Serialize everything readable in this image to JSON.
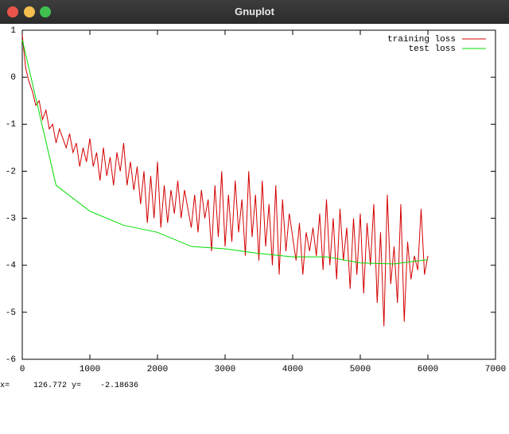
{
  "window": {
    "title": "Gnuplot"
  },
  "status": {
    "x_label": "x=",
    "x_value": "126.772",
    "y_label": "y=",
    "y_value": "-2.18636"
  },
  "chart_data": {
    "type": "line",
    "xlim": [
      0,
      7000
    ],
    "xticks": [
      0,
      1000,
      2000,
      3000,
      4000,
      5000,
      6000,
      7000
    ],
    "ylim": [
      -6,
      1
    ],
    "yticks": [
      1,
      0,
      -1,
      -2,
      -3,
      -4,
      -5,
      -6
    ],
    "legend": "upper right",
    "series": [
      {
        "name": "training loss",
        "color": "#d40000",
        "x": [
          0,
          50,
          100,
          150,
          200,
          250,
          300,
          350,
          400,
          450,
          500,
          550,
          600,
          650,
          700,
          750,
          800,
          850,
          900,
          950,
          1000,
          1050,
          1100,
          1150,
          1200,
          1250,
          1300,
          1350,
          1400,
          1450,
          1500,
          1550,
          1600,
          1650,
          1700,
          1750,
          1800,
          1850,
          1900,
          1950,
          2000,
          2050,
          2100,
          2150,
          2200,
          2250,
          2300,
          2350,
          2400,
          2450,
          2500,
          2550,
          2600,
          2650,
          2700,
          2750,
          2800,
          2850,
          2900,
          2950,
          3000,
          3050,
          3100,
          3150,
          3200,
          3250,
          3300,
          3350,
          3400,
          3450,
          3500,
          3550,
          3600,
          3650,
          3700,
          3750,
          3800,
          3850,
          3900,
          3950,
          4000,
          4050,
          4100,
          4150,
          4200,
          4250,
          4300,
          4350,
          4400,
          4450,
          4500,
          4550,
          4600,
          4650,
          4700,
          4750,
          4800,
          4850,
          4900,
          4950,
          5000,
          5050,
          5100,
          5150,
          5200,
          5250,
          5300,
          5350,
          5400,
          5450,
          5500,
          5550,
          5600,
          5650,
          5700,
          5750,
          5800,
          5850,
          5900,
          5950,
          6000
        ],
        "values": [
          0.9,
          0.2,
          -0.1,
          -0.3,
          -0.6,
          -0.5,
          -0.9,
          -0.7,
          -1.1,
          -1.0,
          -1.4,
          -1.1,
          -1.3,
          -1.5,
          -1.2,
          -1.6,
          -1.4,
          -1.9,
          -1.5,
          -1.8,
          -1.3,
          -1.9,
          -1.6,
          -2.2,
          -1.5,
          -2.1,
          -1.7,
          -2.3,
          -1.6,
          -2.0,
          -1.4,
          -2.3,
          -1.8,
          -2.4,
          -1.9,
          -2.7,
          -2.0,
          -3.1,
          -2.1,
          -3.0,
          -1.8,
          -3.2,
          -2.3,
          -3.1,
          -2.4,
          -2.9,
          -2.2,
          -3.0,
          -2.4,
          -2.8,
          -3.2,
          -2.5,
          -3.3,
          -2.4,
          -3.0,
          -2.6,
          -3.7,
          -2.3,
          -3.4,
          -2.0,
          -3.6,
          -2.5,
          -3.5,
          -2.2,
          -3.3,
          -2.6,
          -3.8,
          -2.0,
          -3.4,
          -2.5,
          -3.9,
          -2.2,
          -3.6,
          -2.7,
          -4.0,
          -2.3,
          -4.2,
          -2.6,
          -3.7,
          -2.9,
          -3.4,
          -3.9,
          -3.1,
          -4.2,
          -3.3,
          -3.7,
          -3.2,
          -3.8,
          -2.9,
          -4.1,
          -2.6,
          -4.0,
          -3.0,
          -4.3,
          -2.8,
          -3.9,
          -3.2,
          -4.5,
          -3.0,
          -4.2,
          -2.9,
          -4.6,
          -3.1,
          -4.0,
          -2.7,
          -4.8,
          -3.3,
          -5.3,
          -2.5,
          -4.4,
          -3.6,
          -4.8,
          -2.7,
          -5.2,
          -3.5,
          -4.3,
          -3.8,
          -4.1,
          -2.8,
          -4.2,
          -3.8
        ]
      },
      {
        "name": "test loss",
        "color": "#00dd00",
        "x": [
          0,
          500,
          1000,
          1500,
          2000,
          2500,
          3000,
          3500,
          4000,
          4500,
          5000,
          5500,
          6000
        ],
        "values": [
          0.8,
          -2.3,
          -2.85,
          -3.15,
          -3.3,
          -3.6,
          -3.65,
          -3.75,
          -3.82,
          -3.82,
          -3.95,
          -3.97,
          -3.88
        ]
      }
    ]
  }
}
